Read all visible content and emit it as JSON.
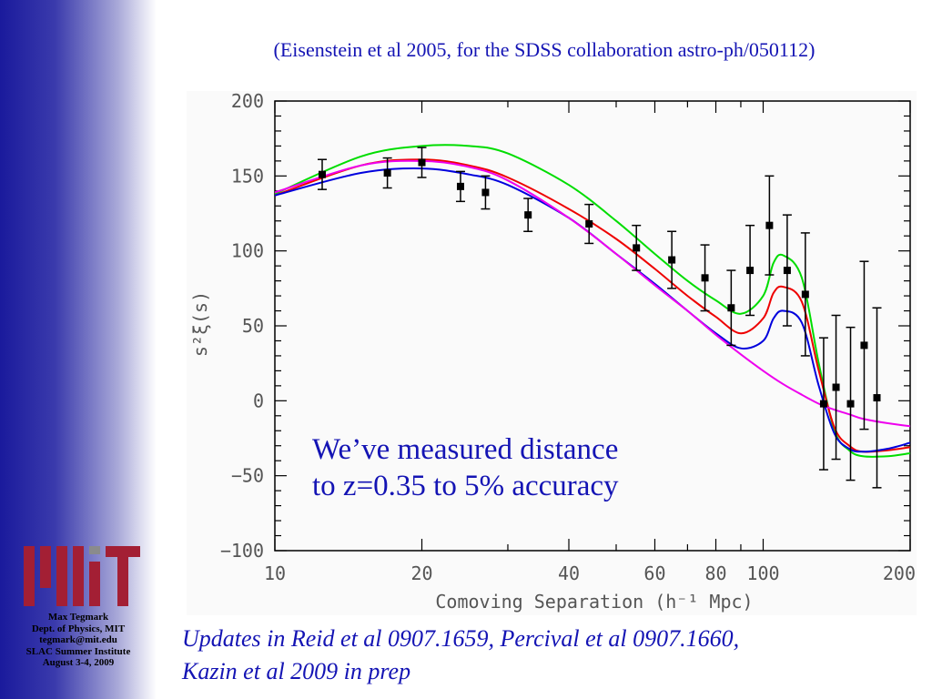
{
  "citation": "(Eisenstein et al 2005, for the SDSS collaboration astro-ph/050112)",
  "callout": {
    "line1": "We’ve measured distance",
    "line2": "to z=0.35 to 5% accuracy"
  },
  "footnote": {
    "line1": "Updates in Reid et al 0907.1659, Percival et al 0907.1660,",
    "line2": "Kazin et al 2009 in prep"
  },
  "sidebar": {
    "logo": "MIT",
    "credits": [
      "Max Tegmark",
      "Dept. of Physics, MIT",
      "tegmark@mit.edu",
      "SLAC Summer Institute",
      "August 3-4, 2009"
    ],
    "colors": {
      "logo_red": "#a31f34",
      "logo_gray": "#8a8b8c",
      "gradient_dark": "#1a1a9c"
    }
  },
  "chart_data": {
    "type": "line",
    "xlabel": "Comoving Separation (h⁻¹ Mpc)",
    "ylabel": "s²ξ(s)",
    "xscale": "log",
    "xlim": [
      10,
      200
    ],
    "ylim": [
      -100,
      200
    ],
    "x_ticks": [
      10,
      20,
      40,
      60,
      80,
      100,
      200
    ],
    "y_ticks": [
      200,
      150,
      100,
      50,
      0,
      -50,
      -100
    ],
    "y_tick_labels": [
      "200",
      "150",
      "100",
      "50",
      "0",
      "−50",
      "−100"
    ],
    "grid": false,
    "legend": "none",
    "points": {
      "x": [
        12.5,
        17,
        20,
        24,
        27,
        33,
        44,
        55,
        65,
        76,
        86,
        94,
        103,
        112,
        122,
        133,
        141,
        151,
        161,
        171
      ],
      "y": [
        151,
        152,
        159,
        143,
        139,
        124,
        118,
        102,
        94,
        82,
        62,
        87,
        117,
        87,
        71,
        -2,
        9,
        -2,
        37,
        2
      ],
      "err": [
        10,
        10,
        10,
        10,
        11,
        11,
        13,
        15,
        19,
        22,
        25,
        30,
        33,
        37,
        41,
        44,
        48,
        51,
        56,
        60
      ],
      "color": "#000000"
    },
    "series": [
      {
        "color": "#00dd00",
        "x": [
          10,
          15,
          20,
          25,
          30,
          40,
          50,
          60,
          70,
          80,
          90,
          100,
          105,
          110,
          120,
          130,
          140,
          150,
          160,
          180,
          200
        ],
        "y": [
          138,
          163,
          170,
          170,
          165,
          144,
          120,
          98,
          80,
          67,
          58,
          70,
          92,
          97,
          82,
          25,
          -20,
          -33,
          -37,
          -37,
          -35
        ]
      },
      {
        "color": "#ee0000",
        "x": [
          10,
          15,
          20,
          25,
          30,
          40,
          50,
          60,
          70,
          80,
          90,
          100,
          105,
          110,
          120,
          130,
          140,
          150,
          160,
          180,
          200
        ],
        "y": [
          137,
          157,
          161,
          157,
          149,
          128,
          108,
          88,
          70,
          56,
          45,
          55,
          72,
          76,
          66,
          20,
          -18,
          -30,
          -34,
          -33,
          -31
        ]
      },
      {
        "color": "#0000dd",
        "x": [
          10,
          15,
          20,
          25,
          30,
          40,
          50,
          60,
          70,
          80,
          90,
          100,
          105,
          110,
          120,
          130,
          140,
          150,
          160,
          180,
          200
        ],
        "y": [
          137,
          152,
          155,
          151,
          144,
          122,
          98,
          78,
          60,
          45,
          35,
          40,
          55,
          60,
          52,
          10,
          -22,
          -32,
          -34,
          -32,
          -28
        ]
      },
      {
        "color": "#ee00ee",
        "x": [
          10,
          15,
          20,
          25,
          30,
          40,
          50,
          60,
          70,
          80,
          90,
          100,
          110,
          120,
          130,
          140,
          150,
          160,
          180,
          200
        ],
        "y": [
          139,
          157,
          160,
          156,
          147,
          122,
          98,
          77,
          60,
          44,
          31,
          20,
          11,
          4,
          -2,
          -6,
          -9,
          -12,
          -15,
          -17
        ]
      }
    ]
  }
}
